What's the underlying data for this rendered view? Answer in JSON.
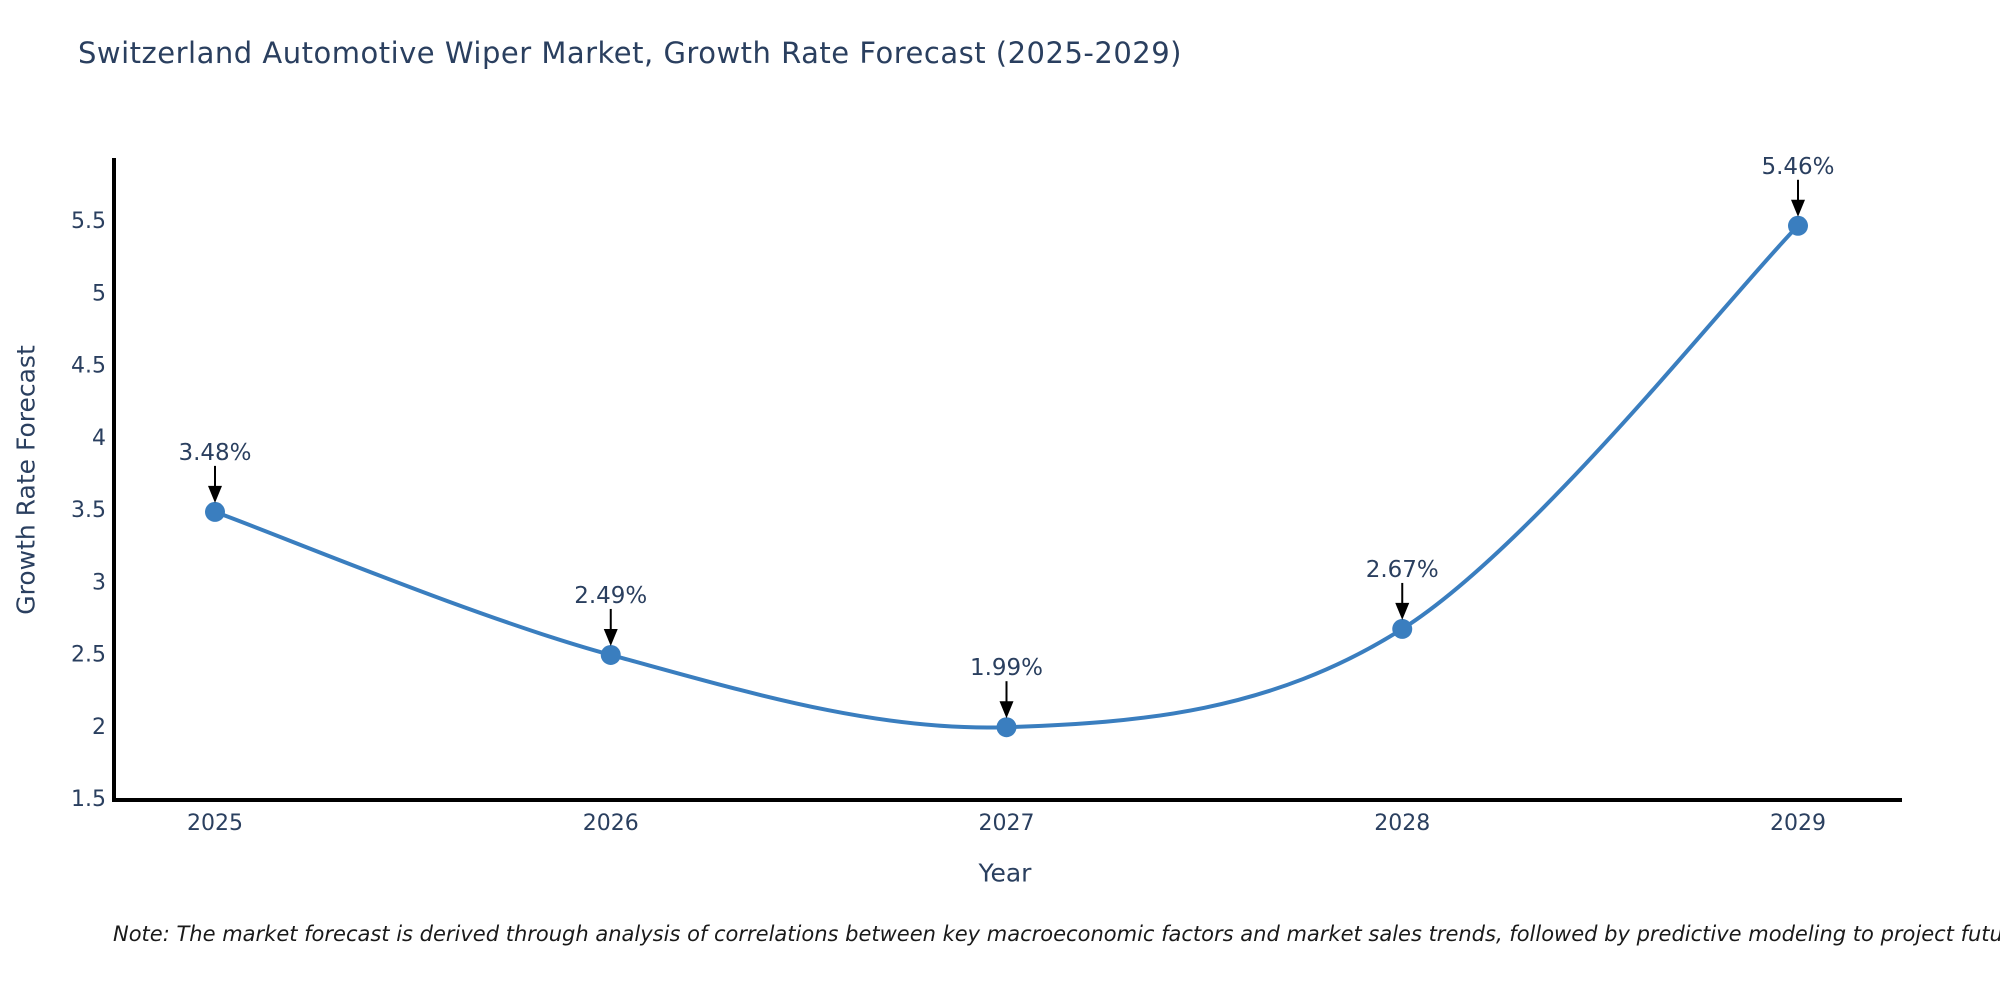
{
  "title": "Switzerland Automotive Wiper Market, Growth Rate Forecast (2025-2029)",
  "note": "Note: The market forecast is derived through analysis of correlations between key macroeconomic factors and market sales trends, followed by predictive modeling to project future sales",
  "chart_data": {
    "type": "line",
    "title": "Switzerland Automotive Wiper Market, Growth Rate Forecast (2025-2029)",
    "xlabel": "Year",
    "ylabel": "Growth Rate Forecast",
    "categories": [
      "2025",
      "2026",
      "2027",
      "2028",
      "2029"
    ],
    "values": [
      3.48,
      2.49,
      1.99,
      2.67,
      5.46
    ],
    "point_labels": [
      "3.48%",
      "2.49%",
      "1.99%",
      "2.67%",
      "5.46%"
    ],
    "line_shape": "spline",
    "grid": false,
    "legend": "none",
    "ylim": [
      1.5,
      5.93
    ],
    "yticks": [
      1.5,
      2,
      2.5,
      3,
      3.5,
      4,
      4.5,
      5,
      5.5
    ],
    "ytick_labels": [
      "1.5",
      "2",
      "2.5",
      "3",
      "3.5",
      "4",
      "4.5",
      "5",
      "5.5"
    ],
    "colors": {
      "line": "#3a7ebf",
      "marker": "#3a7ebf",
      "axis_line": "#000000",
      "chart_text": "#2a3f5f",
      "annotation_arrow": "#000000",
      "note_text": "#1a1a1a",
      "background": "#ffffff"
    }
  }
}
